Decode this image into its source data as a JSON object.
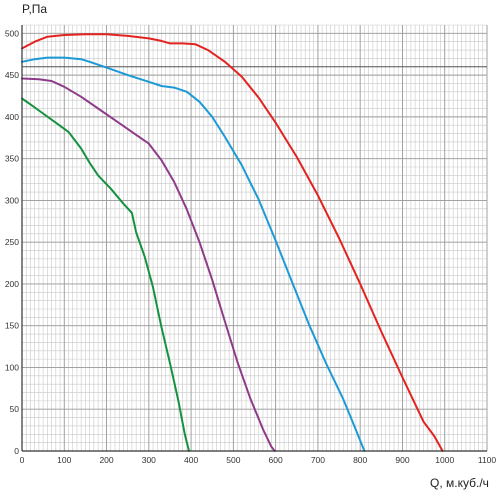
{
  "chart_data": {
    "type": "line",
    "title": "",
    "xlabel": "Q, м.куб./ч",
    "ylabel": "P,Па",
    "xlim": [
      0,
      1100
    ],
    "ylim": [
      0,
      510
    ],
    "x_ticks": [
      0,
      100,
      200,
      300,
      400,
      500,
      600,
      700,
      800,
      900,
      1000,
      1100
    ],
    "y_ticks": [
      0,
      50,
      100,
      150,
      200,
      250,
      300,
      350,
      400,
      450,
      500
    ],
    "x_minor_step": 10,
    "y_minor_step": 10,
    "grid": true,
    "reference_lines": [
      {
        "axis": "y",
        "value": 460
      }
    ],
    "series": [
      {
        "color": "#e32320",
        "points": [
          [
            0,
            482
          ],
          [
            30,
            490
          ],
          [
            60,
            496
          ],
          [
            100,
            498
          ],
          [
            150,
            499
          ],
          [
            200,
            499
          ],
          [
            250,
            497
          ],
          [
            300,
            494
          ],
          [
            330,
            491
          ],
          [
            350,
            488
          ],
          [
            380,
            488
          ],
          [
            410,
            487
          ],
          [
            440,
            480
          ],
          [
            480,
            466
          ],
          [
            520,
            448
          ],
          [
            560,
            423
          ],
          [
            600,
            393
          ],
          [
            650,
            352
          ],
          [
            700,
            306
          ],
          [
            750,
            255
          ],
          [
            800,
            200
          ],
          [
            850,
            143
          ],
          [
            900,
            88
          ],
          [
            950,
            35
          ],
          [
            975,
            18
          ],
          [
            995,
            0
          ]
        ]
      },
      {
        "color": "#1b9ad6",
        "points": [
          [
            0,
            466
          ],
          [
            30,
            469
          ],
          [
            60,
            471
          ],
          [
            100,
            471
          ],
          [
            140,
            469
          ],
          [
            160,
            466
          ],
          [
            200,
            459
          ],
          [
            250,
            450
          ],
          [
            300,
            442
          ],
          [
            330,
            437
          ],
          [
            360,
            435
          ],
          [
            390,
            430
          ],
          [
            420,
            418
          ],
          [
            450,
            400
          ],
          [
            480,
            376
          ],
          [
            520,
            342
          ],
          [
            560,
            301
          ],
          [
            600,
            252
          ],
          [
            640,
            201
          ],
          [
            680,
            150
          ],
          [
            720,
            104
          ],
          [
            760,
            62
          ],
          [
            790,
            25
          ],
          [
            810,
            0
          ]
        ]
      },
      {
        "color": "#8e3b8a",
        "points": [
          [
            0,
            446
          ],
          [
            40,
            445
          ],
          [
            70,
            443
          ],
          [
            100,
            436
          ],
          [
            140,
            424
          ],
          [
            180,
            410
          ],
          [
            220,
            396
          ],
          [
            260,
            382
          ],
          [
            300,
            368
          ],
          [
            330,
            348
          ],
          [
            360,
            322
          ],
          [
            390,
            289
          ],
          [
            420,
            250
          ],
          [
            450,
            205
          ],
          [
            480,
            155
          ],
          [
            510,
            106
          ],
          [
            540,
            63
          ],
          [
            570,
            26
          ],
          [
            590,
            5
          ],
          [
            598,
            0
          ]
        ]
      },
      {
        "color": "#14923f",
        "points": [
          [
            0,
            422
          ],
          [
            20,
            415
          ],
          [
            50,
            404
          ],
          [
            80,
            393
          ],
          [
            110,
            382
          ],
          [
            140,
            362
          ],
          [
            160,
            345
          ],
          [
            180,
            330
          ],
          [
            210,
            314
          ],
          [
            240,
            296
          ],
          [
            260,
            285
          ],
          [
            270,
            262
          ],
          [
            290,
            233
          ],
          [
            310,
            196
          ],
          [
            330,
            148
          ],
          [
            350,
            105
          ],
          [
            370,
            60
          ],
          [
            385,
            20
          ],
          [
            395,
            0
          ]
        ]
      }
    ]
  }
}
